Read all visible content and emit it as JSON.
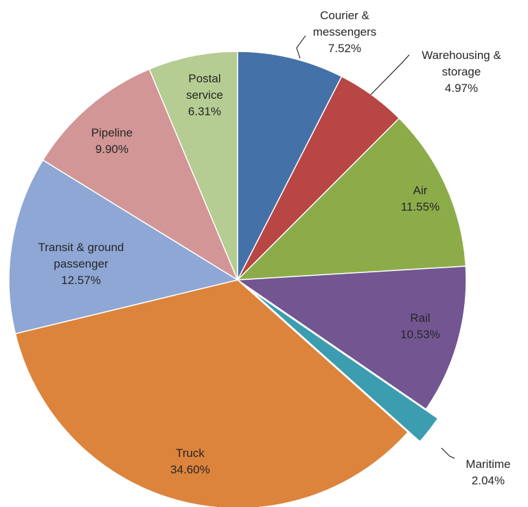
{
  "chart_data": {
    "type": "pie",
    "title": "",
    "legend": "none",
    "slices": [
      {
        "label": [
          "Courier &",
          "messengers"
        ],
        "value": 7.52,
        "value_label": "7.52%",
        "color": "#4472a8"
      },
      {
        "label": [
          "Warehousing &",
          "storage"
        ],
        "value": 4.97,
        "value_label": "4.97%",
        "color": "#b84644"
      },
      {
        "label": [
          "Air"
        ],
        "value": 11.55,
        "value_label": "11.55%",
        "color": "#8cac4a"
      },
      {
        "label": [
          "Rail"
        ],
        "value": 10.53,
        "value_label": "10.53%",
        "color": "#735591"
      },
      {
        "label": [
          "Maritime"
        ],
        "value": 2.04,
        "value_label": "2.04%",
        "color": "#3c9db0",
        "exploded": true
      },
      {
        "label": [
          "Truck"
        ],
        "value": 34.6,
        "value_label": "34.60%",
        "color": "#dc843c"
      },
      {
        "label": [
          "Transit & ground",
          "passenger"
        ],
        "value": 12.57,
        "value_label": "12.57%",
        "color": "#8ea7d4"
      },
      {
        "label": [
          "Pipeline"
        ],
        "value": 9.9,
        "value_label": "9.90%",
        "color": "#d29696"
      },
      {
        "label": [
          "Postal",
          "service"
        ],
        "value": 6.31,
        "value_label": "6.31%",
        "color": "#b5cc92"
      }
    ]
  }
}
